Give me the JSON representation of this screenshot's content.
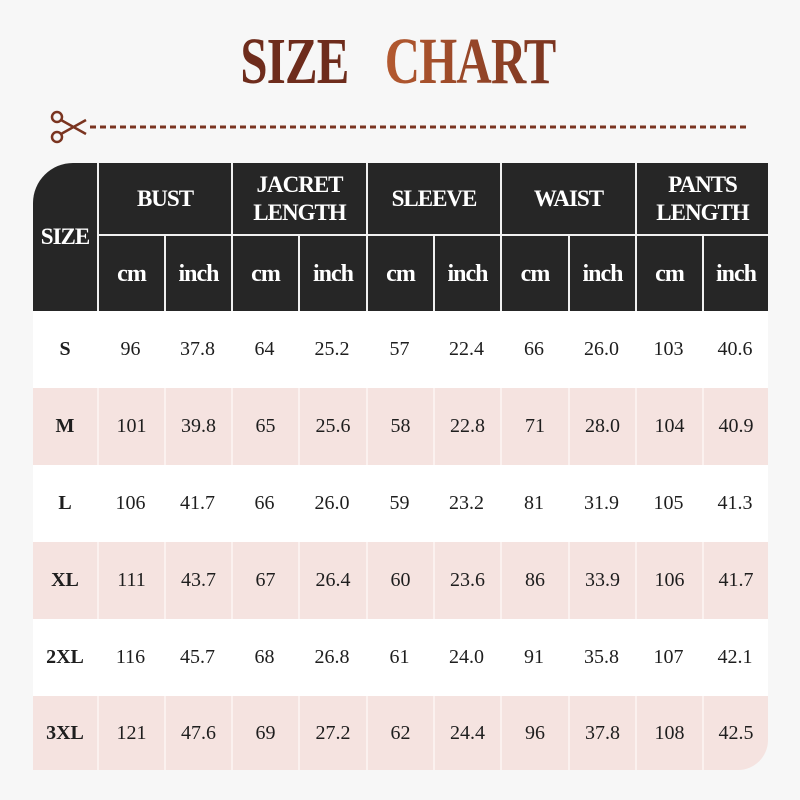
{
  "title": {
    "part1": "SIZE",
    "part2": "CHART"
  },
  "colors": {
    "title_dark": "#6e2c1c",
    "title_accent": "#b45a30",
    "header_bg": "#262626",
    "row_alt": "#f5e3e0",
    "row": "#ffffff"
  },
  "icons": {
    "cut": "scissors-icon"
  },
  "table": {
    "size_header": "SIZE",
    "groups": [
      "BUST",
      "JACRET LENGTH",
      "SLEEVE",
      "WAIST",
      "PANTS LENGTH"
    ],
    "units": [
      "cm",
      "inch",
      "cm",
      "inch",
      "cm",
      "inch",
      "cm",
      "inch",
      "cm",
      "inch"
    ],
    "rows": [
      {
        "size": "S",
        "values": [
          "96",
          "37.8",
          "64",
          "25.2",
          "57",
          "22.4",
          "66",
          "26.0",
          "103",
          "40.6"
        ]
      },
      {
        "size": "M",
        "values": [
          "101",
          "39.8",
          "65",
          "25.6",
          "58",
          "22.8",
          "71",
          "28.0",
          "104",
          "40.9"
        ]
      },
      {
        "size": "L",
        "values": [
          "106",
          "41.7",
          "66",
          "26.0",
          "59",
          "23.2",
          "81",
          "31.9",
          "105",
          "41.3"
        ]
      },
      {
        "size": "XL",
        "values": [
          "111",
          "43.7",
          "67",
          "26.4",
          "60",
          "23.6",
          "86",
          "33.9",
          "106",
          "41.7"
        ]
      },
      {
        "size": "2XL",
        "values": [
          "116",
          "45.7",
          "68",
          "26.8",
          "61",
          "24.0",
          "91",
          "35.8",
          "107",
          "42.1"
        ]
      },
      {
        "size": "3XL",
        "values": [
          "121",
          "47.6",
          "69",
          "27.2",
          "62",
          "24.4",
          "96",
          "37.8",
          "108",
          "42.5"
        ]
      }
    ]
  }
}
